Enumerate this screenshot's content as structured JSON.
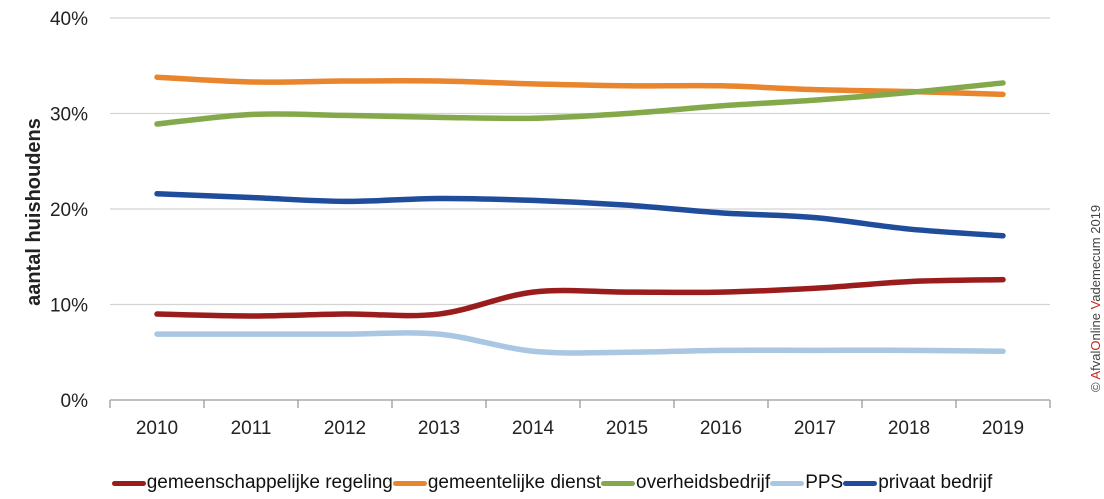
{
  "chart_data": {
    "type": "line",
    "title": "",
    "xlabel": "",
    "ylabel": "aantal huishoudens",
    "categories": [
      "2010",
      "2011",
      "2012",
      "2013",
      "2014",
      "2015",
      "2016",
      "2017",
      "2018",
      "2019"
    ],
    "yticks": [
      "0%",
      "10%",
      "20%",
      "30%",
      "40%"
    ],
    "ylim": [
      0,
      40
    ],
    "grid": true,
    "legend_position": "bottom",
    "series": [
      {
        "name": "gemeenschappelijke regeling",
        "color": "#9b1c1c",
        "values": [
          9.0,
          8.8,
          9.0,
          9.0,
          11.3,
          11.3,
          11.3,
          11.7,
          12.4,
          12.6
        ]
      },
      {
        "name": "gemeentelijke dienst",
        "color": "#e8852d",
        "values": [
          33.8,
          33.3,
          33.4,
          33.4,
          33.1,
          32.9,
          32.9,
          32.5,
          32.3,
          32.0
        ]
      },
      {
        "name": "overheidsbedrijf",
        "color": "#84a94b",
        "values": [
          28.9,
          29.9,
          29.8,
          29.6,
          29.5,
          30.0,
          30.8,
          31.4,
          32.2,
          33.2
        ]
      },
      {
        "name": "PPS",
        "color": "#a9c6e2",
        "values": [
          6.9,
          6.9,
          6.9,
          6.9,
          5.1,
          5.0,
          5.2,
          5.2,
          5.2,
          5.1
        ]
      },
      {
        "name": "privaat bedrijf",
        "color": "#1f4d9c",
        "values": [
          21.6,
          21.2,
          20.8,
          21.1,
          20.9,
          20.4,
          19.6,
          19.1,
          17.9,
          17.2
        ]
      }
    ]
  },
  "credit": {
    "prefix": "© ",
    "a": "A",
    "afval": "fval",
    "o": "O",
    "nline": "nline ",
    "v": "V",
    "ademecum": "ademecum 2019"
  }
}
